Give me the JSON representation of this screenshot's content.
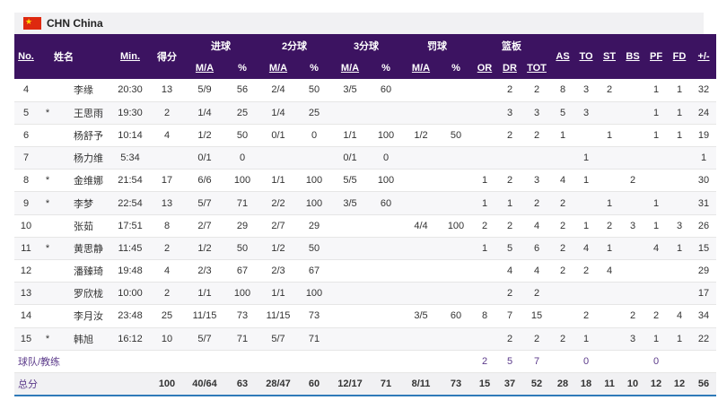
{
  "team": {
    "code_name": "CHN China",
    "flag_icon": "china-flag-icon"
  },
  "header": {
    "row1": [
      "No.",
      "姓名",
      "Min.",
      "得分",
      "进球",
      "2分球",
      "3分球",
      "罚球",
      "篮板",
      "AS",
      "TO",
      "ST",
      "BS",
      "PF",
      "FD",
      "+/-"
    ],
    "row2": [
      "M/A",
      "%",
      "M/A",
      "%",
      "M/A",
      "%",
      "M/A",
      "%",
      "OR",
      "DR",
      "TOT"
    ]
  },
  "players": [
    [
      "4",
      "",
      "李缘",
      "20:30",
      "13",
      "5/9",
      "56",
      "2/4",
      "50",
      "3/5",
      "60",
      "",
      "",
      "",
      "2",
      "2",
      "8",
      "3",
      "2",
      "",
      "1",
      "1",
      "32"
    ],
    [
      "5",
      "*",
      "王思雨",
      "19:30",
      "2",
      "1/4",
      "25",
      "1/4",
      "25",
      "",
      "",
      "",
      "",
      "",
      "3",
      "3",
      "5",
      "3",
      "",
      "",
      "1",
      "1",
      "24"
    ],
    [
      "6",
      "",
      "杨舒予",
      "10:14",
      "4",
      "1/2",
      "50",
      "0/1",
      "0",
      "1/1",
      "100",
      "1/2",
      "50",
      "",
      "2",
      "2",
      "1",
      "",
      "1",
      "",
      "1",
      "1",
      "19"
    ],
    [
      "7",
      "",
      "杨力维",
      "5:34",
      "",
      "0/1",
      "0",
      "",
      "",
      "0/1",
      "0",
      "",
      "",
      "",
      "",
      "",
      "",
      "1",
      "",
      "",
      "",
      "",
      "1"
    ],
    [
      "8",
      "*",
      "金维娜",
      "21:54",
      "17",
      "6/6",
      "100",
      "1/1",
      "100",
      "5/5",
      "100",
      "",
      "",
      "1",
      "2",
      "3",
      "4",
      "1",
      "",
      "2",
      "",
      "",
      "30"
    ],
    [
      "9",
      "*",
      "李梦",
      "22:54",
      "13",
      "5/7",
      "71",
      "2/2",
      "100",
      "3/5",
      "60",
      "",
      "",
      "1",
      "1",
      "2",
      "2",
      "",
      "1",
      "",
      "1",
      "",
      "31"
    ],
    [
      "10",
      "",
      "张茹",
      "17:51",
      "8",
      "2/7",
      "29",
      "2/7",
      "29",
      "",
      "",
      "4/4",
      "100",
      "2",
      "2",
      "4",
      "2",
      "1",
      "2",
      "3",
      "1",
      "3",
      "26"
    ],
    [
      "11",
      "*",
      "黄思静",
      "11:45",
      "2",
      "1/2",
      "50",
      "1/2",
      "50",
      "",
      "",
      "",
      "",
      "1",
      "5",
      "6",
      "2",
      "4",
      "1",
      "",
      "4",
      "1",
      "15"
    ],
    [
      "12",
      "",
      "潘臻琦",
      "19:48",
      "4",
      "2/3",
      "67",
      "2/3",
      "67",
      "",
      "",
      "",
      "",
      "",
      "4",
      "4",
      "2",
      "2",
      "4",
      "",
      "",
      "",
      "29"
    ],
    [
      "13",
      "",
      "罗欣栊",
      "10:00",
      "2",
      "1/1",
      "100",
      "1/1",
      "100",
      "",
      "",
      "",
      "",
      "",
      "2",
      "2",
      "",
      "",
      "",
      "",
      "",
      "",
      "17"
    ],
    [
      "14",
      "",
      "李月汝",
      "23:48",
      "25",
      "11/15",
      "73",
      "11/15",
      "73",
      "",
      "",
      "3/5",
      "60",
      "8",
      "7",
      "15",
      "",
      "2",
      "",
      "2",
      "2",
      "4",
      "34"
    ],
    [
      "15",
      "*",
      "韩旭",
      "16:12",
      "10",
      "5/7",
      "71",
      "5/7",
      "71",
      "",
      "",
      "",
      "",
      "",
      "2",
      "2",
      "2",
      "1",
      "",
      "3",
      "1",
      "1",
      "22"
    ]
  ],
  "team_row": {
    "label": "球队/教练",
    "or": "2",
    "dr": "5",
    "tot": "7",
    "to": "0",
    "pf": "0"
  },
  "totals": {
    "label": "总分",
    "values": [
      "100",
      "40/64",
      "63",
      "28/47",
      "60",
      "12/17",
      "71",
      "8/11",
      "73",
      "15",
      "37",
      "52",
      "28",
      "18",
      "11",
      "10",
      "12",
      "12",
      "56"
    ]
  }
}
